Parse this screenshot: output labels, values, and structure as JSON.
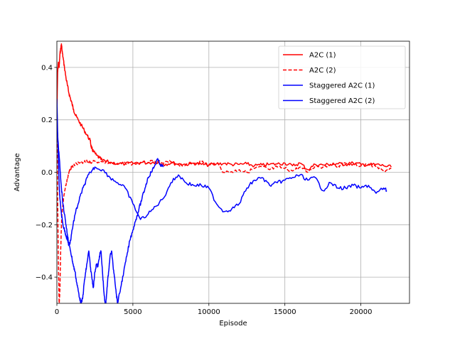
{
  "chart_data": {
    "type": "line",
    "title": "",
    "xlabel": "Episode",
    "ylabel": "Advantage",
    "xlim": [
      0,
      23200
    ],
    "ylim": [
      -0.5,
      0.5
    ],
    "xticks": [
      0,
      5000,
      10000,
      15000,
      20000
    ],
    "xtick_labels": [
      "0",
      "5000",
      "10000",
      "15000",
      "20000"
    ],
    "yticks": [
      -0.4,
      -0.2,
      0.0,
      0.2,
      0.4
    ],
    "ytick_labels": [
      "−0.4",
      "−0.2",
      "0.0",
      "0.2",
      "0.4"
    ],
    "grid": true,
    "legend_position": "upper right",
    "series": [
      {
        "name": "A2C (1)",
        "color": "#ff0000",
        "dash": "solid",
        "x": [
          0,
          50,
          100,
          150,
          200,
          250,
          300,
          350,
          400,
          500,
          600,
          700,
          800,
          900,
          1000,
          1100,
          1200,
          1400,
          1600,
          1800,
          2000,
          2200,
          2250,
          2300,
          2400,
          2600,
          2800,
          3000,
          3500,
          4000,
          4500,
          5000,
          5500,
          6000,
          6500,
          7000,
          7500,
          8000,
          8500,
          9000,
          9500,
          10000,
          10500,
          11000,
          11500,
          12000,
          12500,
          13000,
          13500,
          14000,
          14500,
          15000,
          15500,
          16000,
          16500,
          17000,
          17500,
          18000,
          18500,
          19000,
          19500,
          20000,
          20500,
          21000,
          21500,
          22000
        ],
        "y": [
          0.22,
          0.38,
          0.42,
          0.4,
          0.45,
          0.47,
          0.49,
          0.46,
          0.44,
          0.4,
          0.36,
          0.33,
          0.3,
          0.28,
          0.26,
          0.24,
          0.22,
          0.2,
          0.18,
          0.16,
          0.14,
          0.12,
          0.1,
          0.09,
          0.08,
          0.065,
          0.055,
          0.045,
          0.038,
          0.034,
          0.032,
          0.035,
          0.038,
          0.036,
          0.04,
          0.03,
          0.035,
          0.032,
          0.03,
          0.035,
          0.03,
          0.028,
          0.032,
          0.034,
          0.03,
          0.03,
          0.032,
          0.025,
          0.028,
          0.03,
          0.032,
          0.035,
          0.025,
          0.035,
          0.01,
          0.03,
          0.028,
          0.03,
          0.032,
          0.03,
          0.035,
          0.03,
          0.028,
          0.03,
          0.025,
          0.02
        ]
      },
      {
        "name": "A2C (2)",
        "color": "#ff0000",
        "dash": "dashed",
        "x": [
          0,
          50,
          100,
          150,
          200,
          250,
          300,
          350,
          400,
          500,
          600,
          700,
          800,
          900,
          1000,
          1200,
          1500,
          1800,
          2000,
          2200,
          2500,
          3000,
          3500,
          4000,
          4500,
          5000,
          5500,
          6000,
          6500,
          7000,
          7500,
          8000,
          8500,
          9000,
          9500,
          10000,
          10500,
          11000,
          11500,
          12000,
          12500,
          13000,
          13500,
          14000,
          14500,
          15000,
          15500,
          16000,
          16500,
          17000,
          17500,
          18000,
          18500,
          19000,
          19500,
          20000,
          20500,
          21000,
          21500,
          22000
        ],
        "y": [
          0.25,
          -0.1,
          -0.35,
          -0.5,
          -0.45,
          -0.3,
          -0.2,
          -0.15,
          -0.12,
          -0.08,
          -0.05,
          -0.02,
          0.0,
          0.015,
          0.02,
          0.03,
          0.035,
          0.038,
          0.04,
          0.04,
          0.042,
          0.04,
          0.035,
          0.03,
          0.035,
          0.033,
          0.035,
          0.038,
          0.04,
          0.035,
          0.04,
          0.03,
          0.028,
          0.035,
          0.04,
          0.03,
          0.035,
          0.0,
          0.002,
          0.01,
          0.0,
          0.015,
          0.02,
          0.01,
          0.02,
          0.015,
          0.005,
          0.02,
          0.0,
          0.025,
          0.02,
          0.03,
          0.025,
          0.035,
          0.03,
          0.025,
          0.03,
          0.02,
          0.005,
          0.015
        ]
      },
      {
        "name": "Staggered A2C (1)",
        "color": "#0000ff",
        "dash": "solid",
        "x": [
          0,
          50,
          100,
          150,
          200,
          300,
          400,
          500,
          600,
          700,
          800,
          900,
          1000,
          1100,
          1200,
          1300,
          1400,
          1500,
          1600,
          1700,
          1800,
          1900,
          2000,
          2100,
          2200,
          2300,
          2400,
          2500,
          2600,
          2700,
          2800,
          2900,
          3000,
          3100,
          3200,
          3300,
          3400,
          3500,
          3600,
          3700,
          3800,
          3900,
          4000,
          4200,
          4400,
          4600,
          4800,
          5000,
          5200,
          5400,
          5600,
          5800,
          6000,
          6200,
          6400,
          6600,
          6800,
          7000
        ],
        "y": [
          0.28,
          0.15,
          0.05,
          -0.05,
          -0.1,
          -0.16,
          -0.2,
          -0.22,
          -0.24,
          -0.26,
          -0.28,
          -0.3,
          -0.33,
          -0.36,
          -0.38,
          -0.42,
          -0.45,
          -0.48,
          -0.5,
          -0.48,
          -0.42,
          -0.38,
          -0.34,
          -0.3,
          -0.36,
          -0.4,
          -0.44,
          -0.38,
          -0.35,
          -0.36,
          -0.32,
          -0.3,
          -0.38,
          -0.46,
          -0.52,
          -0.44,
          -0.38,
          -0.32,
          -0.3,
          -0.36,
          -0.4,
          -0.46,
          -0.5,
          -0.44,
          -0.38,
          -0.32,
          -0.26,
          -0.22,
          -0.18,
          -0.14,
          -0.1,
          -0.06,
          -0.02,
          0.0,
          0.02,
          0.05,
          0.03,
          0.02
        ]
      },
      {
        "name": "Staggered A2C (2)",
        "color": "#0000ff",
        "dash": "solid",
        "x": [
          0,
          100,
          200,
          300,
          400,
          500,
          600,
          700,
          800,
          900,
          1000,
          1200,
          1400,
          1600,
          1800,
          2000,
          2200,
          2500,
          3000,
          3500,
          4000,
          4500,
          5000,
          5500,
          6000,
          6500,
          7000,
          7500,
          8000,
          8500,
          9000,
          9500,
          10000,
          10500,
          11000,
          11500,
          12000,
          12500,
          13000,
          13500,
          14000,
          14500,
          15000,
          15500,
          16000,
          16500,
          17000,
          17500,
          18000,
          18500,
          19000,
          19500,
          20000,
          20500,
          21000,
          21500,
          21700
        ],
        "y": [
          0.18,
          0.1,
          0.02,
          -0.06,
          -0.12,
          -0.16,
          -0.2,
          -0.24,
          -0.28,
          -0.26,
          -0.22,
          -0.16,
          -0.12,
          -0.08,
          -0.05,
          -0.02,
          0.0,
          0.02,
          0.01,
          -0.02,
          -0.04,
          -0.06,
          -0.12,
          -0.18,
          -0.16,
          -0.13,
          -0.1,
          -0.04,
          -0.01,
          -0.04,
          -0.05,
          -0.05,
          -0.06,
          -0.12,
          -0.15,
          -0.14,
          -0.12,
          -0.06,
          -0.03,
          -0.02,
          -0.05,
          -0.04,
          -0.03,
          -0.02,
          -0.01,
          -0.03,
          -0.02,
          -0.07,
          -0.04,
          -0.06,
          -0.06,
          -0.05,
          -0.06,
          -0.05,
          -0.08,
          -0.06,
          -0.07
        ]
      }
    ]
  }
}
